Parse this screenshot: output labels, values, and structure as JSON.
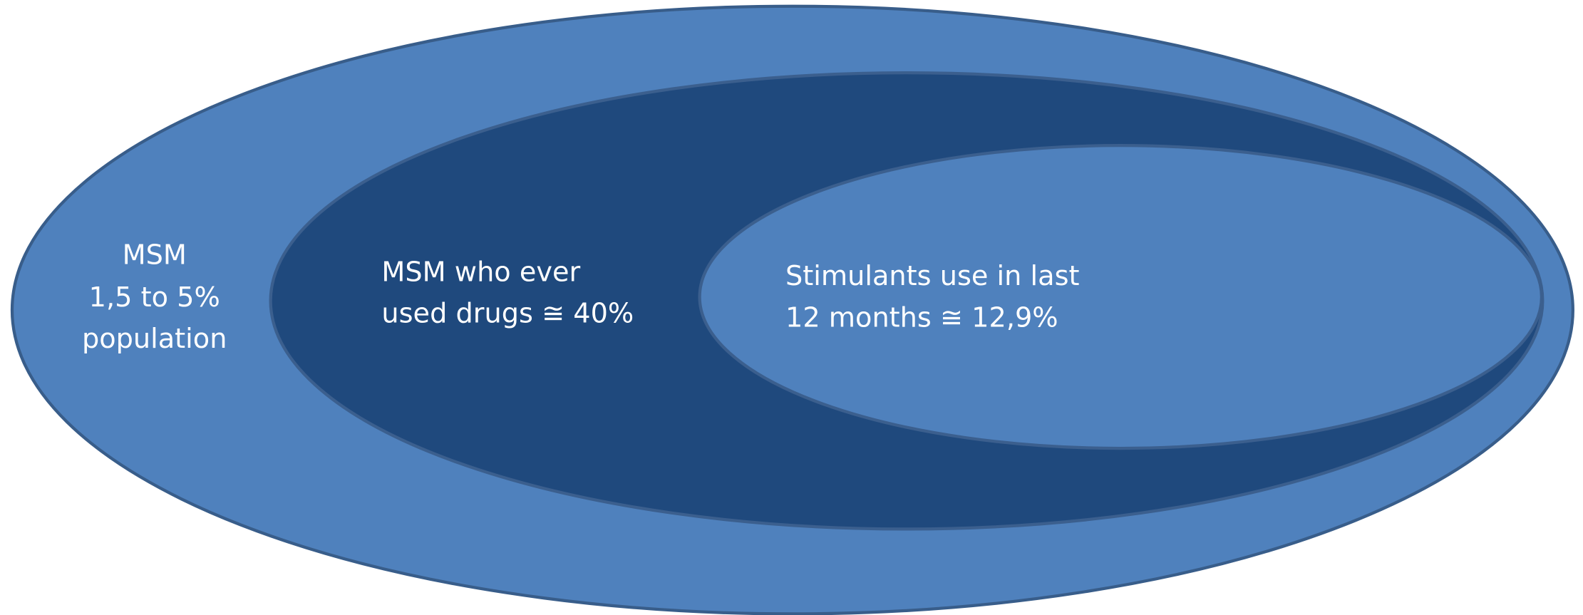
{
  "nodes": [
    {
      "lines": [
        "MSM",
        "1,5 to 5%",
        "population"
      ]
    },
    {
      "lines": [
        "MSM who ever",
        "used drugs ≅ 40%"
      ]
    },
    {
      "lines": [
        "Stimulants use in last",
        "12 months ≅ 12,9%"
      ]
    }
  ]
}
